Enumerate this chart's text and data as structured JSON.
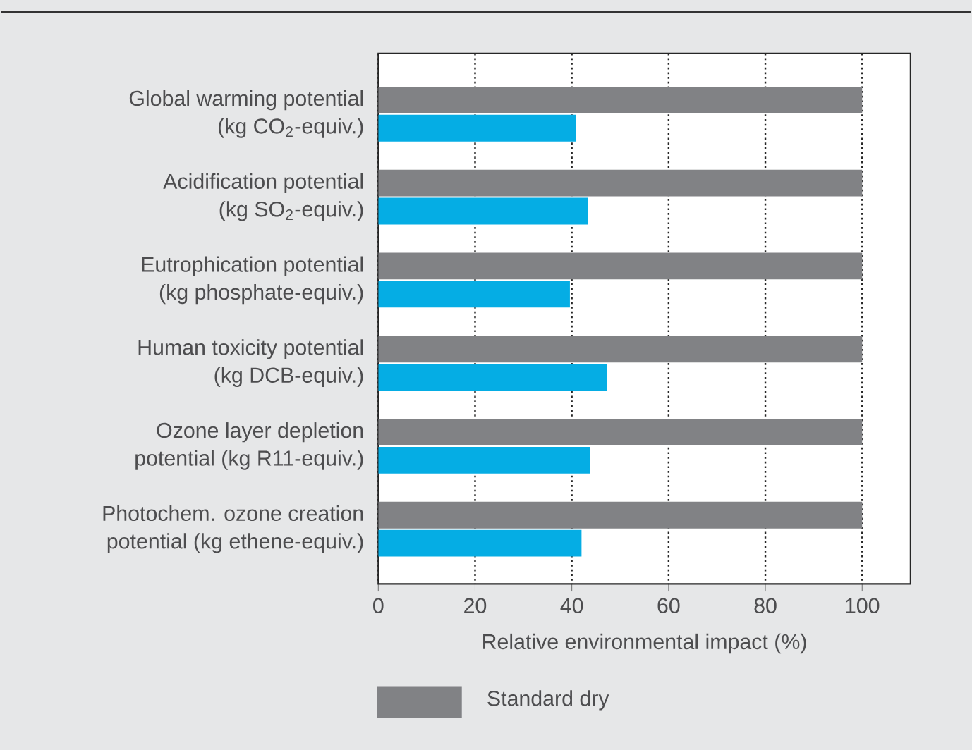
{
  "chart_data": {
    "type": "bar",
    "orientation": "horizontal",
    "xlabel": "Relative environmental impact (%)",
    "categories": [
      "Global warming potential\n(kg CO$_{2}$-equiv.)",
      "Acidification potential\n(kg SO$_{2}$-equiv.)",
      "Eutrophication potential\n(kg phosphate-equiv.)",
      "Human toxicity potential\n(kg DCB-equiv.)",
      "Ozone layer depletion\npotential (kg R11-equiv.)",
      "Photochem. ozone creation\npotential (kg ethene-equiv.)"
    ],
    "series": [
      {
        "name": "Standard dry",
        "color": "#818285",
        "values": [
          100,
          100,
          100,
          100,
          100,
          100
        ]
      },
      {
        "color": "#05ade4",
        "values": [
          40.8,
          43.4,
          39.6,
          47.3,
          43.7,
          42.0
        ]
      }
    ],
    "xlim": [
      0,
      110
    ],
    "xticks": [
      0,
      20,
      40,
      60,
      80,
      100
    ],
    "grid": "x",
    "legend": "bottom"
  }
}
